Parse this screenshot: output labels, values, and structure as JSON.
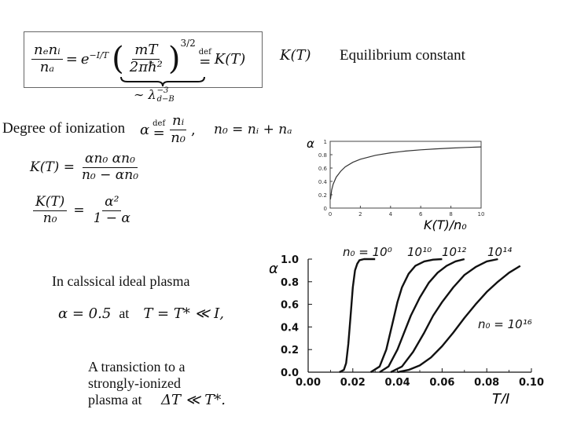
{
  "equation_box": {
    "lhs_num": "nₑnᵢ",
    "lhs_den": "nₐ",
    "eq": "=",
    "exp_base": "e",
    "exp_power": "−I/T",
    "inner_num": "mT",
    "inner_den": "2πħ²",
    "power": "3/2",
    "def": "def",
    "eq2": "=",
    "rhs": "K(T)",
    "underbrace_label": "∼ λ",
    "underbrace_sup": "−3",
    "underbrace_sub": "d−B"
  },
  "kt_label": "K(T)",
  "eq_constant_label": "Equilibrium constant",
  "degree": {
    "label": "Degree of ionization",
    "alpha_expr": "α",
    "def": "def",
    "eq": "=",
    "num": "nᵢ",
    "den": "n₀",
    "comma": ",",
    "n0_expr": "n₀ = nᵢ + nₐ"
  },
  "kt_eq1": {
    "lhs": "K(T) =",
    "num": "αn₀ αn₀",
    "den": "n₀ − αn₀"
  },
  "kt_eq2": {
    "lhs_num": "K(T)",
    "lhs_den": "n₀",
    "eq": "=",
    "num": "α²",
    "den": "1 − α"
  },
  "classical": {
    "title": "In calssical ideal plasma",
    "alpha_eq": "α = 0.5",
    "at": "at",
    "cond": "T = T* ≪ I,"
  },
  "transition": {
    "line1": "A transiction to a",
    "line2": "strongly-ionized",
    "line3": "plasma at",
    "cond": "ΔT ≪ T*."
  },
  "small_plot": {
    "y_axis_label": "α",
    "x_axis_label": "K(T)/n₀",
    "y_ticks": [
      "0",
      "0.2",
      "0.4",
      "0.6",
      "0.8",
      "1"
    ],
    "x_ticks": [
      "0",
      "2",
      "4",
      "6",
      "8",
      "10"
    ],
    "xlim": [
      0,
      10
    ],
    "ylim": [
      0,
      1
    ],
    "curve_x": [
      0.02,
      0.1,
      0.2,
      0.4,
      0.7,
      1,
      1.5,
      2,
      3,
      4,
      5,
      6,
      7,
      8,
      9,
      10
    ],
    "curve_y": [
      0.132,
      0.27,
      0.358,
      0.463,
      0.552,
      0.618,
      0.686,
      0.732,
      0.791,
      0.828,
      0.854,
      0.873,
      0.887,
      0.899,
      0.908,
      0.916
    ],
    "color": "#333333"
  },
  "chart_data": {
    "type": "line",
    "xlabel": "T/I",
    "ylabel": "α",
    "xlim": [
      0.0,
      0.1
    ],
    "ylim": [
      0.0,
      1.0
    ],
    "x_ticks": [
      "0.00",
      "0.02",
      "0.04",
      "0.06",
      "0.08",
      "0.10"
    ],
    "y_ticks": [
      "0.0",
      "0.2",
      "0.4",
      "0.6",
      "0.8",
      "1.0"
    ],
    "series": [
      {
        "name": "n₀ = 10⁰",
        "x": [
          0.014,
          0.016,
          0.017,
          0.018,
          0.019,
          0.02,
          0.021,
          0.022,
          0.023,
          0.025,
          0.03
        ],
        "y": [
          0.0,
          0.02,
          0.08,
          0.25,
          0.5,
          0.75,
          0.9,
          0.96,
          0.99,
          1.0,
          1.0
        ]
      },
      {
        "name": "10¹⁰",
        "x": [
          0.028,
          0.032,
          0.035,
          0.038,
          0.04,
          0.042,
          0.045,
          0.048,
          0.052,
          0.056,
          0.06
        ],
        "y": [
          0.0,
          0.05,
          0.2,
          0.45,
          0.62,
          0.75,
          0.87,
          0.94,
          0.98,
          0.995,
          1.0
        ]
      },
      {
        "name": "10¹²",
        "x": [
          0.032,
          0.036,
          0.04,
          0.043,
          0.046,
          0.05,
          0.054,
          0.058,
          0.062,
          0.066,
          0.07
        ],
        "y": [
          0.0,
          0.05,
          0.2,
          0.35,
          0.5,
          0.66,
          0.79,
          0.88,
          0.94,
          0.98,
          1.0
        ]
      },
      {
        "name": "10¹⁴",
        "x": [
          0.037,
          0.042,
          0.047,
          0.052,
          0.056,
          0.06,
          0.065,
          0.07,
          0.075,
          0.08,
          0.085
        ],
        "y": [
          0.0,
          0.05,
          0.18,
          0.35,
          0.5,
          0.62,
          0.75,
          0.86,
          0.93,
          0.98,
          1.0
        ]
      },
      {
        "name": "n₀ = 10¹⁶",
        "x": [
          0.04,
          0.045,
          0.05,
          0.055,
          0.06,
          0.065,
          0.07,
          0.075,
          0.08,
          0.085,
          0.09,
          0.095
        ],
        "y": [
          0.0,
          0.02,
          0.06,
          0.13,
          0.23,
          0.35,
          0.48,
          0.6,
          0.71,
          0.8,
          0.88,
          0.94
        ]
      }
    ],
    "line_color": "#111111"
  }
}
